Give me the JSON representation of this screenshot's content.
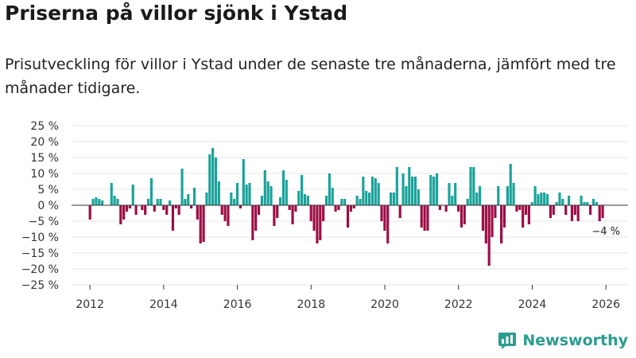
{
  "header": {
    "title": "Priserna på villor sjönk i Ystad",
    "subtitle": "Prisutveckling för villor i Ystad under de senaste tre månaderna, jämfört med tre månader tidigare."
  },
  "brand": {
    "name": "Newsworthy",
    "logo_icon": "bar-chart-icon"
  },
  "colors": {
    "positive": "#1aa39a",
    "negative": "#9c0d45",
    "grid": "#e6e6e6",
    "axis": "#333333",
    "brand": "#2a9d8f"
  },
  "chart_data": {
    "type": "bar",
    "ylabel": "",
    "xlabel": "",
    "ylim": [
      -25,
      25
    ],
    "yticks": [
      25,
      20,
      15,
      10,
      5,
      0,
      -5,
      -10,
      -15,
      -20,
      -25
    ],
    "ytick_labels": [
      "25 %",
      "20 %",
      "15 %",
      "10 %",
      "5 %",
      "0 %",
      "−5 %",
      "−10 %",
      "−15 %",
      "−20 %",
      "−25 %"
    ],
    "xlim": [
      2011.5,
      2026.6
    ],
    "xticks": [
      2012,
      2014,
      2016,
      2018,
      2020,
      2022,
      2024,
      2026
    ],
    "xtick_labels": [
      "2012",
      "2014",
      "2016",
      "2018",
      "2020",
      "2022",
      "2024",
      "2026"
    ],
    "start": 2012.0,
    "step": 0.0833,
    "values": [
      -4.5,
      2,
      2.5,
      2,
      1.5,
      0,
      0,
      7,
      3,
      2,
      -6,
      -4.5,
      -2,
      -1,
      6.5,
      -3,
      0,
      -1.5,
      -3,
      2,
      8.5,
      -2,
      2,
      2,
      -1.5,
      -3,
      1.5,
      -8,
      -1,
      -3,
      11.5,
      2,
      3.5,
      -1,
      5.5,
      -4.5,
      -12,
      -11.5,
      4,
      16,
      18,
      15,
      7.5,
      -3,
      -5,
      -6.5,
      4,
      2,
      7,
      -1,
      14.5,
      6.5,
      7,
      -11,
      -8,
      -3,
      3,
      11,
      7.5,
      6,
      -6.5,
      -4,
      2.5,
      11,
      8,
      -1.5,
      -6,
      -2,
      4.5,
      9.5,
      3.5,
      3,
      -5,
      -8,
      -12,
      -11,
      -5,
      3,
      10,
      5.5,
      -2,
      -1.5,
      2,
      2,
      -7,
      -2,
      -1,
      3,
      2,
      9,
      4.5,
      4,
      9,
      8.5,
      7,
      -5,
      -8,
      -12,
      4,
      4,
      12,
      -4,
      10,
      6,
      12,
      9,
      9,
      5,
      -7,
      -8,
      -8,
      9.5,
      9,
      10,
      -1.5,
      0,
      -2,
      7,
      3,
      7,
      -2,
      -7,
      -6,
      2,
      12,
      12,
      4,
      6,
      -8,
      -12,
      -19,
      -10,
      -4,
      6,
      -12,
      -7,
      6,
      13,
      7,
      -2,
      -1.5,
      -7,
      -3,
      -6,
      1,
      6,
      3.5,
      4,
      4,
      3.5,
      -4,
      -3,
      1,
      4,
      2,
      -3,
      3,
      -5,
      -3,
      -5,
      3,
      1,
      1,
      -3,
      2,
      1,
      -5,
      -4
    ],
    "annotations": [
      {
        "text": "−4 %",
        "x": 2026.0,
        "y": -4
      }
    ]
  }
}
